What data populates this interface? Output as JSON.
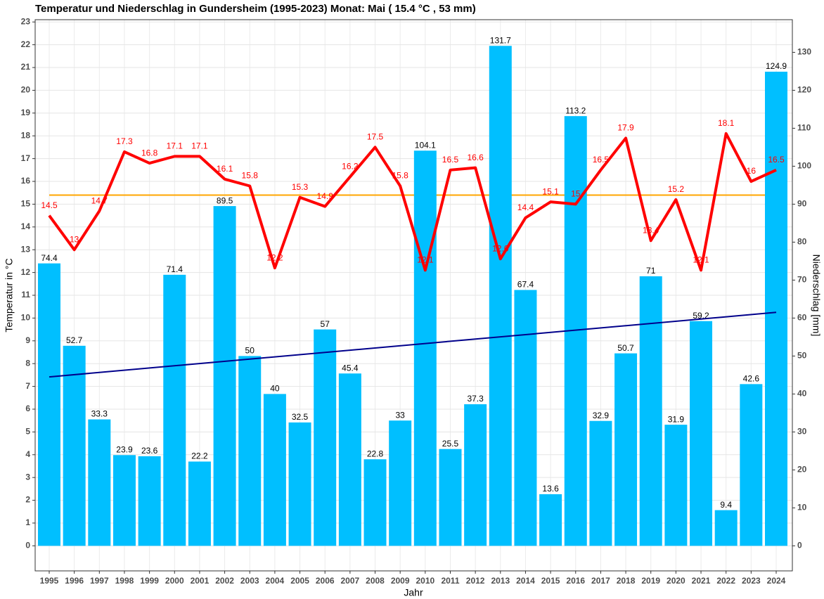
{
  "chart_data": {
    "type": "combo",
    "title": "Temperatur und Niederschlag in Gundersheim (1995-2023) Monat: Mai ( 15.4 °C , 53 mm)",
    "xlabel": "Jahr",
    "ylabel": "Temperatur in °C",
    "y2label": "Niederschlag [mm]",
    "categories": [
      "1995",
      "1996",
      "1997",
      "1998",
      "1999",
      "2000",
      "2001",
      "2002",
      "2003",
      "2004",
      "2005",
      "2006",
      "2007",
      "2008",
      "2009",
      "2010",
      "2011",
      "2012",
      "2013",
      "2014",
      "2015",
      "2016",
      "2017",
      "2018",
      "2019",
      "2020",
      "2021",
      "2022",
      "2023",
      "2024"
    ],
    "series": [
      {
        "type": "bar",
        "axis": "y2",
        "color": "#00bfff",
        "values": [
          74.4,
          52.7,
          33.3,
          23.9,
          23.6,
          71.4,
          22.2,
          89.5,
          50,
          40,
          32.5,
          57,
          45.4,
          22.8,
          33,
          104.1,
          25.5,
          37.3,
          131.7,
          67.4,
          13.6,
          113.2,
          32.9,
          50.7,
          71,
          31.9,
          59.2,
          9.4,
          42.6,
          124.9
        ]
      },
      {
        "type": "line",
        "axis": "y",
        "color": "#ff0000",
        "values": [
          14.5,
          13,
          14.7,
          17.3,
          16.8,
          17.1,
          17.1,
          16.1,
          15.8,
          12.2,
          15.3,
          14.9,
          16.2,
          17.5,
          15.8,
          12.1,
          16.5,
          16.6,
          12.6,
          14.4,
          15.1,
          15,
          16.5,
          17.9,
          13.4,
          15.2,
          12.1,
          18.1,
          16,
          16.5
        ]
      }
    ],
    "mean_line": {
      "axis": "y",
      "value": 15.4,
      "color": "#ffa500"
    },
    "trend_line": {
      "axis": "y2",
      "values": [
        44.5,
        61.5
      ],
      "color": "#00008b"
    },
    "ylim": [
      -1.1,
      23.1
    ],
    "yticks": [
      0,
      1,
      2,
      3,
      4,
      5,
      6,
      7,
      8,
      9,
      10,
      11,
      12,
      13,
      14,
      15,
      16,
      17,
      18,
      19,
      20,
      21,
      22,
      23
    ],
    "y2lim": [
      -6.6,
      138.6
    ],
    "y2ticks": [
      0,
      10,
      20,
      30,
      40,
      50,
      60,
      70,
      80,
      90,
      100,
      110,
      120,
      130
    ],
    "grid": true
  }
}
